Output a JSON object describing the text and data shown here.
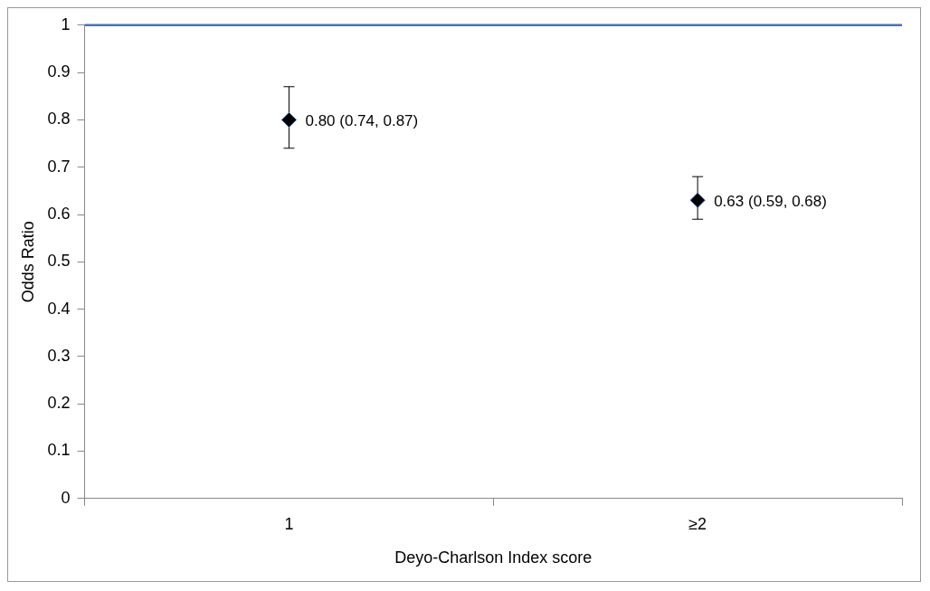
{
  "chart_data": {
    "type": "scatter",
    "xlabel": "Deyo-Charlson Index score",
    "ylabel": "Odds Ratio",
    "categories": [
      "1",
      "≥2"
    ],
    "series": [
      {
        "color": "#000000",
        "values": [
          0.8,
          0.63
        ],
        "errors": [
          [
            0.74,
            0.87
          ],
          [
            0.59,
            0.68
          ]
        ],
        "value_labels": [
          "0.80 (0.74, 0.87)",
          "0.63 (0.59, 0.68)"
        ]
      }
    ],
    "marker": "diamond",
    "ylim": [
      0,
      1
    ],
    "yticks": [
      0,
      0.1,
      0.2,
      0.3,
      0.4,
      0.5,
      0.6,
      0.7,
      0.8,
      0.9,
      1
    ],
    "ref_lines": [
      {
        "axis": "y",
        "value": 1,
        "color": "#4472c4"
      }
    ],
    "grid": false,
    "legend": false
  }
}
